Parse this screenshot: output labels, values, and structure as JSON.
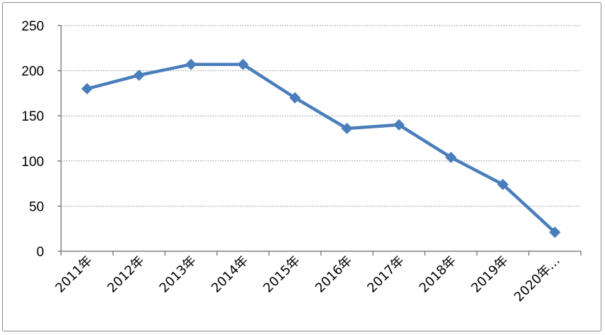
{
  "chart_data": {
    "type": "line",
    "categories": [
      "2011年",
      "2012年",
      "2013年",
      "2014年",
      "2015年",
      "2016年",
      "2017年",
      "2018年",
      "2019年",
      "2020年…"
    ],
    "series": [
      {
        "values": [
          180,
          195,
          207,
          207,
          170,
          136,
          140,
          104,
          74,
          21
        ]
      }
    ],
    "ylim": [
      0,
      250
    ],
    "yticks": [
      0,
      50,
      100,
      150,
      200,
      250
    ],
    "grid": true,
    "legend": "none",
    "colors": {
      "series": "#4a7ebb",
      "grid": "#8c8c8c",
      "axis": "#808080"
    }
  }
}
